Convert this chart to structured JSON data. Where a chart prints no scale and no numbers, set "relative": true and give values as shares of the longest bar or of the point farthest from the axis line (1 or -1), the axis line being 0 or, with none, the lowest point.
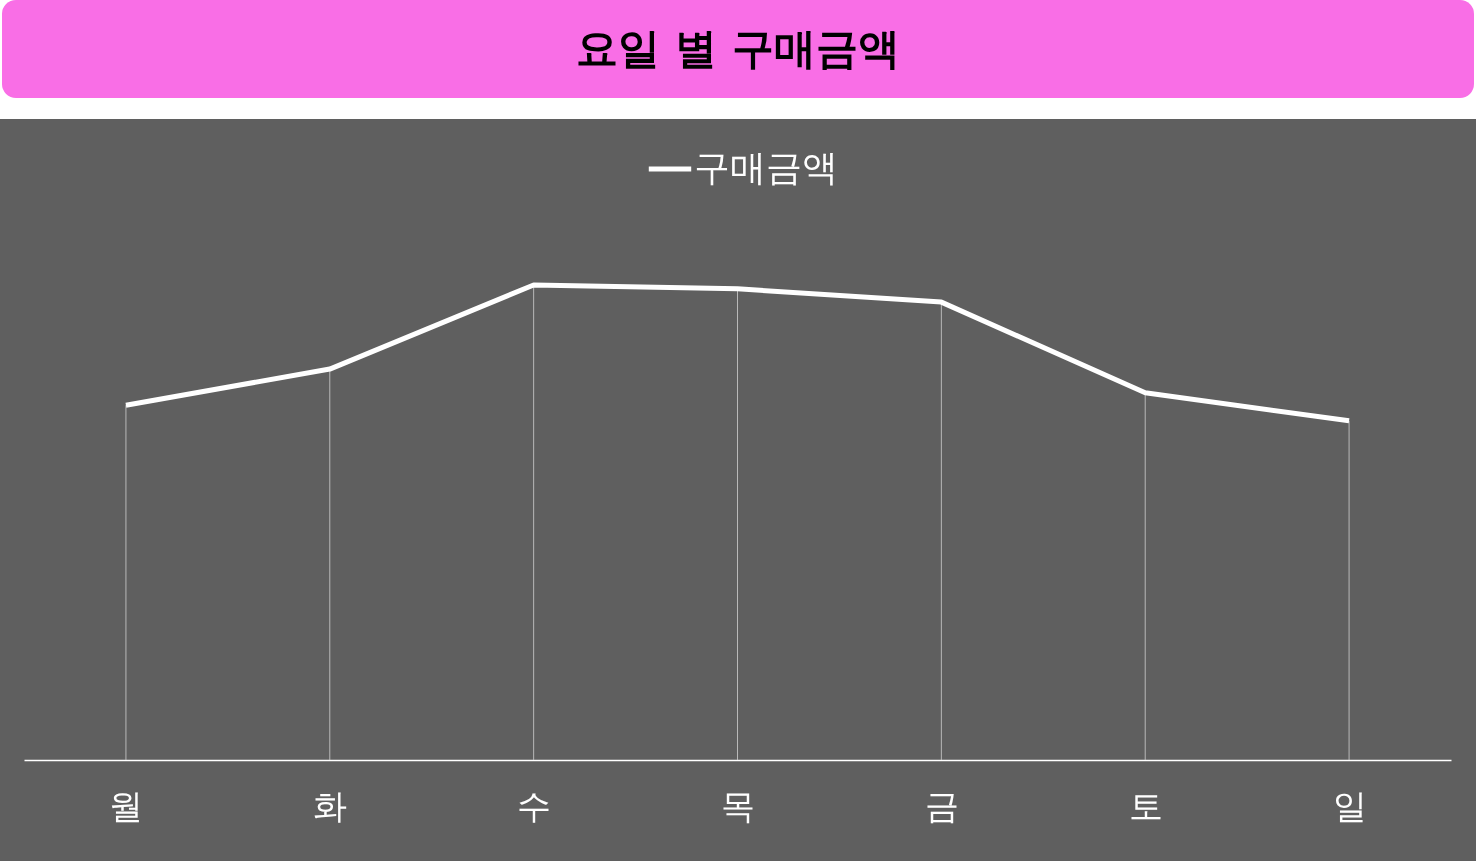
{
  "chart_data": {
    "type": "line",
    "title": "요일 별 구매금액",
    "relative": true,
    "categories": [
      "월",
      "화",
      "수",
      "목",
      "금",
      "토",
      "일"
    ],
    "series": [
      {
        "name": "구매금액",
        "color": "#ffffff",
        "values": [
          0.747,
          0.823,
          1,
          0.992,
          0.964,
          0.773,
          0.714
        ]
      }
    ],
    "legend": "top",
    "grid": "x",
    "marker": "none",
    "line_style": "solid"
  }
}
